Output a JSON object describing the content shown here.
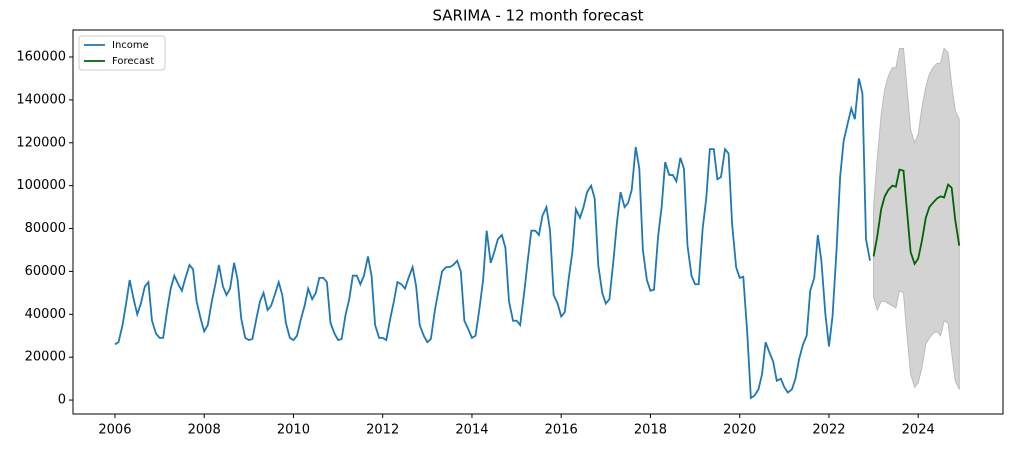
{
  "chart_data": {
    "type": "line",
    "title": "SARIMA - 12 month forecast",
    "xlim": [
      2005.06,
      2025.9
    ],
    "xticks": [
      2006,
      2008,
      2010,
      2012,
      2014,
      2016,
      2018,
      2020,
      2022,
      2024
    ],
    "ylim": [
      -6500,
      172600
    ],
    "yticks": [
      0,
      20000,
      40000,
      60000,
      80000,
      100000,
      120000,
      140000,
      160000
    ],
    "legend": "upper left",
    "band_color": "#d3d3d3",
    "series": [
      {
        "name": "Income",
        "color": "#1f77b4",
        "x": [
          2006,
          2006.08,
          2006.17,
          2006.25,
          2006.33,
          2006.42,
          2006.5,
          2006.58,
          2006.67,
          2006.75,
          2006.83,
          2006.92,
          2007,
          2007.08,
          2007.17,
          2007.25,
          2007.33,
          2007.42,
          2007.5,
          2007.58,
          2007.67,
          2007.75,
          2007.83,
          2007.92,
          2008,
          2008.08,
          2008.17,
          2008.25,
          2008.33,
          2008.42,
          2008.5,
          2008.58,
          2008.67,
          2008.75,
          2008.83,
          2008.92,
          2009,
          2009.08,
          2009.17,
          2009.25,
          2009.33,
          2009.42,
          2009.5,
          2009.58,
          2009.67,
          2009.75,
          2009.83,
          2009.92,
          2010,
          2010.08,
          2010.17,
          2010.25,
          2010.33,
          2010.42,
          2010.5,
          2010.58,
          2010.67,
          2010.75,
          2010.83,
          2010.92,
          2011,
          2011.08,
          2011.17,
          2011.25,
          2011.33,
          2011.42,
          2011.5,
          2011.58,
          2011.67,
          2011.75,
          2011.83,
          2011.92,
          2012,
          2012.08,
          2012.17,
          2012.25,
          2012.33,
          2012.42,
          2012.5,
          2012.58,
          2012.67,
          2012.75,
          2012.83,
          2012.92,
          2013,
          2013.08,
          2013.17,
          2013.25,
          2013.33,
          2013.42,
          2013.5,
          2013.58,
          2013.67,
          2013.75,
          2013.83,
          2013.92,
          2014,
          2014.08,
          2014.17,
          2014.25,
          2014.33,
          2014.42,
          2014.5,
          2014.58,
          2014.67,
          2014.75,
          2014.83,
          2014.92,
          2015,
          2015.08,
          2015.17,
          2015.25,
          2015.33,
          2015.42,
          2015.5,
          2015.58,
          2015.67,
          2015.75,
          2015.83,
          2015.92,
          2016,
          2016.08,
          2016.17,
          2016.25,
          2016.33,
          2016.42,
          2016.5,
          2016.58,
          2016.67,
          2016.75,
          2016.83,
          2016.92,
          2017,
          2017.08,
          2017.17,
          2017.25,
          2017.33,
          2017.42,
          2017.5,
          2017.58,
          2017.67,
          2017.75,
          2017.83,
          2017.92,
          2018,
          2018.08,
          2018.17,
          2018.25,
          2018.33,
          2018.42,
          2018.5,
          2018.58,
          2018.67,
          2018.75,
          2018.83,
          2018.92,
          2019,
          2019.08,
          2019.17,
          2019.25,
          2019.33,
          2019.42,
          2019.5,
          2019.58,
          2019.67,
          2019.75,
          2019.83,
          2019.92,
          2020,
          2020.08,
          2020.17,
          2020.25,
          2020.33,
          2020.42,
          2020.5,
          2020.58,
          2020.67,
          2020.75,
          2020.83,
          2020.92,
          2021,
          2021.08,
          2021.17,
          2021.25,
          2021.33,
          2021.42,
          2021.5,
          2021.58,
          2021.67,
          2021.75,
          2021.83,
          2021.92,
          2022,
          2022.08,
          2022.17,
          2022.25,
          2022.33,
          2022.42,
          2022.5,
          2022.58,
          2022.67,
          2022.75,
          2022.83,
          2022.92
        ],
        "values": [
          26000,
          27000,
          35000,
          45000,
          56000,
          47000,
          40000,
          45000,
          53000,
          55000,
          37000,
          31000,
          29000,
          29000,
          42000,
          52000,
          58000,
          54000,
          51000,
          57000,
          63000,
          61000,
          46000,
          38000,
          32000,
          35000,
          46000,
          54000,
          63000,
          53000,
          49000,
          52000,
          64000,
          56000,
          38000,
          29000,
          28000,
          28500,
          38000,
          46000,
          50000,
          42000,
          44000,
          49000,
          55000,
          49000,
          36000,
          29000,
          28000,
          30000,
          38000,
          44000,
          52000,
          47000,
          50000,
          57000,
          57000,
          55000,
          36000,
          31000,
          28000,
          28500,
          40000,
          47000,
          58000,
          58000,
          54000,
          58000,
          67000,
          58000,
          35000,
          29000,
          29000,
          28000,
          38000,
          46000,
          55000,
          54000,
          52000,
          57000,
          62000,
          53000,
          35000,
          30000,
          27000,
          28500,
          42000,
          51000,
          60000,
          62000,
          62000,
          63000,
          65000,
          60000,
          37000,
          33000,
          29000,
          30000,
          43000,
          56000,
          79000,
          64000,
          69000,
          75000,
          77000,
          71000,
          46000,
          37000,
          37000,
          35000,
          50000,
          65000,
          79000,
          79000,
          77000,
          86000,
          90000,
          79000,
          49000,
          45000,
          39000,
          41000,
          57000,
          69000,
          89000,
          85000,
          90000,
          97000,
          100000,
          94000,
          63000,
          50000,
          45000,
          47000,
          65000,
          83000,
          97000,
          90000,
          92000,
          98000,
          118000,
          108000,
          70000,
          56000,
          51000,
          51500,
          76000,
          90000,
          111000,
          105000,
          105000,
          102000,
          113000,
          108000,
          72000,
          58000,
          54000,
          54000,
          80000,
          94000,
          117000,
          117000,
          103000,
          104000,
          117000,
          115000,
          82000,
          62000,
          57000,
          57500,
          31000,
          1000,
          2000,
          5000,
          12000,
          27000,
          22000,
          18000,
          9000,
          10000,
          6000,
          3500,
          5000,
          10000,
          19000,
          26000,
          30000,
          51000,
          57000,
          77000,
          65000,
          40000,
          25000,
          39000,
          70000,
          104000,
          121000,
          129000,
          136000,
          131000,
          150000,
          143000,
          75000,
          65000
        ]
      },
      {
        "name": "Forecast",
        "color": "#006400",
        "x": [
          2023,
          2023.08,
          2023.17,
          2023.25,
          2023.33,
          2023.42,
          2023.5,
          2023.58,
          2023.67,
          2023.75,
          2023.83,
          2023.92,
          2024,
          2024.08,
          2024.17,
          2024.25,
          2024.33,
          2024.42,
          2024.5,
          2024.58,
          2024.67,
          2024.75,
          2024.83,
          2024.92
        ],
        "values": [
          67000,
          76000,
          89000,
          95000,
          98000,
          100000,
          99500,
          107500,
          107000,
          88000,
          69000,
          63500,
          66000,
          74000,
          85000,
          90000,
          92000,
          94000,
          95000,
          94500,
          100500,
          99000,
          84000,
          72000
        ],
        "lower": [
          48000,
          42000,
          46000,
          46000,
          45000,
          44000,
          43000,
          51000,
          50000,
          30000,
          12000,
          6000,
          8000,
          15000,
          26000,
          29000,
          31000,
          32000,
          30000,
          37000,
          36000,
          22000,
          9000,
          5000
        ],
        "upper": [
          90000,
          112000,
          133000,
          145000,
          151000,
          155000,
          155000,
          164000,
          164000,
          145000,
          126000,
          120000,
          124000,
          136000,
          146000,
          152000,
          155000,
          157000,
          157000,
          164000,
          162000,
          147000,
          135000,
          131000
        ]
      }
    ]
  }
}
